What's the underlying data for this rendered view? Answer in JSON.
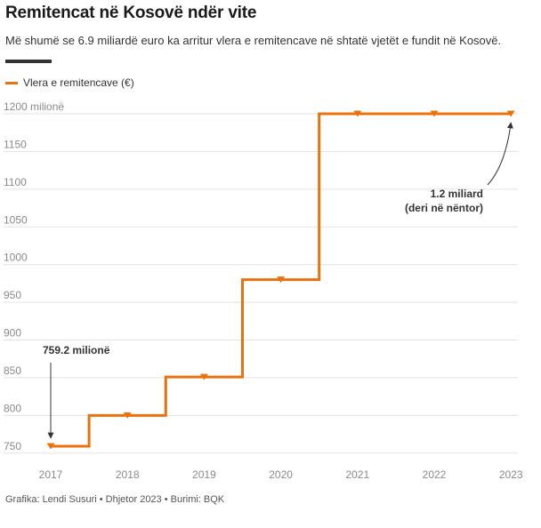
{
  "header": {
    "title": "Remitencat në Kosovë ndër vite",
    "subtitle": "Më shumë se 6.9 miliardë euro ka arritur vlera e remitencave në shtatë vjetët e fundit në Kosovë."
  },
  "legend": {
    "label": "Vlera e remitencave (€)"
  },
  "colors": {
    "series": "#e8730e",
    "grid": "#e3e3e3",
    "axis_text": "#8a8a8a",
    "annotation": "#333333"
  },
  "footer": {
    "credit": "Grafika: Lendi Susuri • Dhjetor 2023 • Burimi: BQK"
  },
  "chart_data": {
    "type": "line",
    "line_style": "step",
    "x": [
      "2017",
      "2018",
      "2019",
      "2020",
      "2021",
      "2022",
      "2023"
    ],
    "series": [
      {
        "name": "Vlera e remitencave (€)",
        "values": [
          759.2,
          800,
          851,
          980,
          1200,
          1200,
          1200
        ]
      }
    ],
    "ylim": [
      745,
      1200
    ],
    "yticks": [
      750,
      800,
      850,
      900,
      950,
      1000,
      1050,
      1100,
      1150,
      1200
    ],
    "ytick_labels": [
      "750",
      "800",
      "850",
      "900",
      "950",
      "1000",
      "1050",
      "1100",
      "1150",
      "1200 milionë"
    ],
    "grid": true,
    "legend_position": "top-left",
    "annotations": [
      {
        "text_lines": [
          "759.2 milionë"
        ],
        "x": "2017",
        "y": 759.2
      },
      {
        "text_lines": [
          "1.2 miliard",
          "(deri në nëntor)"
        ],
        "x": "2023",
        "y": 1200
      }
    ]
  }
}
